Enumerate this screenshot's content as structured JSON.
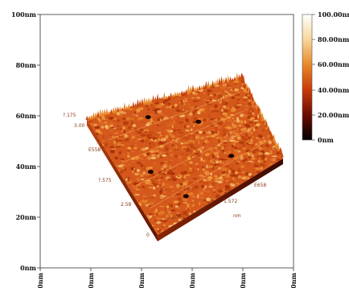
{
  "chart_data": {
    "type": "heatmap",
    "title": "",
    "xlabel": "",
    "ylabel": "",
    "x_range": [
      0,
      100
    ],
    "y_range": [
      0,
      100
    ],
    "x_ticks": [
      "0nm",
      "20nm",
      "40nm",
      "60nm",
      "80nm",
      "100nm"
    ],
    "y_ticks": [
      "0nm",
      "20nm",
      "40nm",
      "60nm",
      "80nm",
      "100nm"
    ],
    "colorbar": {
      "range": [
        0,
        100
      ],
      "ticks": [
        "100.00nm",
        "80.00nm",
        "60.00nm",
        "40.00nm",
        "20.00nm",
        "0nm"
      ],
      "colors": [
        "#ffffff",
        "#f7d79a",
        "#e8882a",
        "#c83a08",
        "#6a0c00",
        "#000000"
      ]
    },
    "surface_labels": [
      "?.175",
      "3.00",
      "E558",
      "?.575",
      "2.58",
      "2.10E",
      "0",
      "3",
      "1.572",
      "E658",
      "nm"
    ]
  }
}
